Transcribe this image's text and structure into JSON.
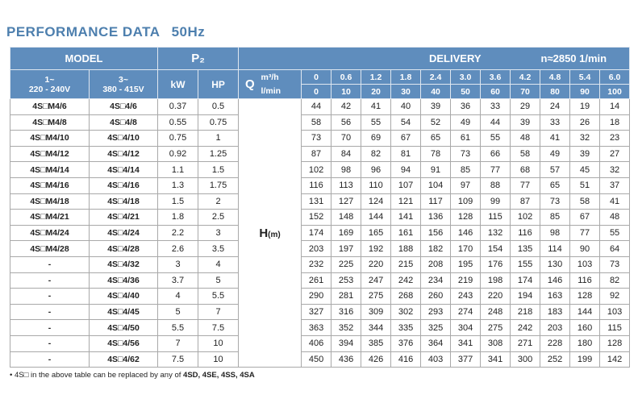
{
  "title": "PERFORMANCE DATA",
  "title_freq": "50Hz",
  "header": {
    "model": "MODEL",
    "p2": "P₂",
    "delivery": "DELIVERY",
    "speed": "n≈2850 1/min",
    "phase1": "1~",
    "voltage1": "220 - 240V",
    "phase3": "3~",
    "voltage3": "380 - 415V",
    "kw": "kW",
    "hp": "HP",
    "q": "Q",
    "unit_m3h": "m³/h",
    "unit_lmin": "l/min",
    "m3h": [
      "0",
      "0.6",
      "1.2",
      "1.8",
      "2.4",
      "3.0",
      "3.6",
      "4.2",
      "4.8",
      "5.4",
      "6.0"
    ],
    "lmin": [
      "0",
      "10",
      "20",
      "30",
      "40",
      "50",
      "60",
      "70",
      "80",
      "90",
      "100"
    ],
    "h_label": "H",
    "h_unit": "(m)"
  },
  "rows": [
    {
      "model1": "4S□M4/6",
      "model2": "4S□4/6",
      "kw": 0.37,
      "hp": 0.5,
      "h": [
        44,
        42,
        41,
        40,
        39,
        36,
        33,
        29,
        24,
        19,
        14
      ]
    },
    {
      "model1": "4S□M4/8",
      "model2": "4S□4/8",
      "kw": 0.55,
      "hp": 0.75,
      "h": [
        58,
        56,
        55,
        54,
        52,
        49,
        44,
        39,
        33,
        26,
        18
      ]
    },
    {
      "model1": "4S□M4/10",
      "model2": "4S□4/10",
      "kw": 0.75,
      "hp": 1,
      "h": [
        73,
        70,
        69,
        67,
        65,
        61,
        55,
        48,
        41,
        32,
        23
      ]
    },
    {
      "model1": "4S□M4/12",
      "model2": "4S□4/12",
      "kw": 0.92,
      "hp": 1.25,
      "h": [
        87,
        84,
        82,
        81,
        78,
        73,
        66,
        58,
        49,
        39,
        27
      ]
    },
    {
      "model1": "4S□M4/14",
      "model2": "4S□4/14",
      "kw": 1.1,
      "hp": 1.5,
      "h": [
        102,
        98,
        96,
        94,
        91,
        85,
        77,
        68,
        57,
        45,
        32
      ]
    },
    {
      "model1": "4S□M4/16",
      "model2": "4S□4/16",
      "kw": 1.3,
      "hp": 1.75,
      "h": [
        116,
        113,
        110,
        107,
        104,
        97,
        88,
        77,
        65,
        51,
        37
      ]
    },
    {
      "model1": "4S□M4/18",
      "model2": "4S□4/18",
      "kw": 1.5,
      "hp": 2,
      "h": [
        131,
        127,
        124,
        121,
        117,
        109,
        99,
        87,
        73,
        58,
        41
      ]
    },
    {
      "model1": "4S□M4/21",
      "model2": "4S□4/21",
      "kw": 1.8,
      "hp": 2.5,
      "h": [
        152,
        148,
        144,
        141,
        136,
        128,
        115,
        102,
        85,
        67,
        48
      ]
    },
    {
      "model1": "4S□M4/24",
      "model2": "4S□4/24",
      "kw": 2.2,
      "hp": 3,
      "h": [
        174,
        169,
        165,
        161,
        156,
        146,
        132,
        116,
        98,
        77,
        55
      ]
    },
    {
      "model1": "4S□M4/28",
      "model2": "4S□4/28",
      "kw": 2.6,
      "hp": 3.5,
      "h": [
        203,
        197,
        192,
        188,
        182,
        170,
        154,
        135,
        114,
        90,
        64
      ]
    },
    {
      "model1": "-",
      "model2": "4S□4/32",
      "kw": 3,
      "hp": 4,
      "h": [
        232,
        225,
        220,
        215,
        208,
        195,
        176,
        155,
        130,
        103,
        73
      ]
    },
    {
      "model1": "-",
      "model2": "4S□4/36",
      "kw": 3.7,
      "hp": 5,
      "h": [
        261,
        253,
        247,
        242,
        234,
        219,
        198,
        174,
        146,
        116,
        82
      ]
    },
    {
      "model1": "-",
      "model2": "4S□4/40",
      "kw": 4,
      "hp": 5.5,
      "h": [
        290,
        281,
        275,
        268,
        260,
        243,
        220,
        194,
        163,
        128,
        92
      ]
    },
    {
      "model1": "-",
      "model2": "4S□4/45",
      "kw": 5,
      "hp": 7,
      "h": [
        327,
        316,
        309,
        302,
        293,
        274,
        248,
        218,
        183,
        144,
        103
      ]
    },
    {
      "model1": "-",
      "model2": "4S□4/50",
      "kw": 5.5,
      "hp": 7.5,
      "h": [
        363,
        352,
        344,
        335,
        325,
        304,
        275,
        242,
        203,
        160,
        115
      ]
    },
    {
      "model1": "-",
      "model2": "4S□4/56",
      "kw": 7,
      "hp": 10,
      "h": [
        406,
        394,
        385,
        376,
        364,
        341,
        308,
        271,
        228,
        180,
        128
      ]
    },
    {
      "model1": "-",
      "model2": "4S□4/62",
      "kw": 7.5,
      "hp": 10,
      "h": [
        450,
        436,
        426,
        416,
        403,
        377,
        341,
        300,
        252,
        199,
        142
      ]
    }
  ],
  "footnote": {
    "text": "• 4S□ in the above table can be replaced by any of ",
    "models": "4SD, 4SE, 4SS, 4SA"
  }
}
